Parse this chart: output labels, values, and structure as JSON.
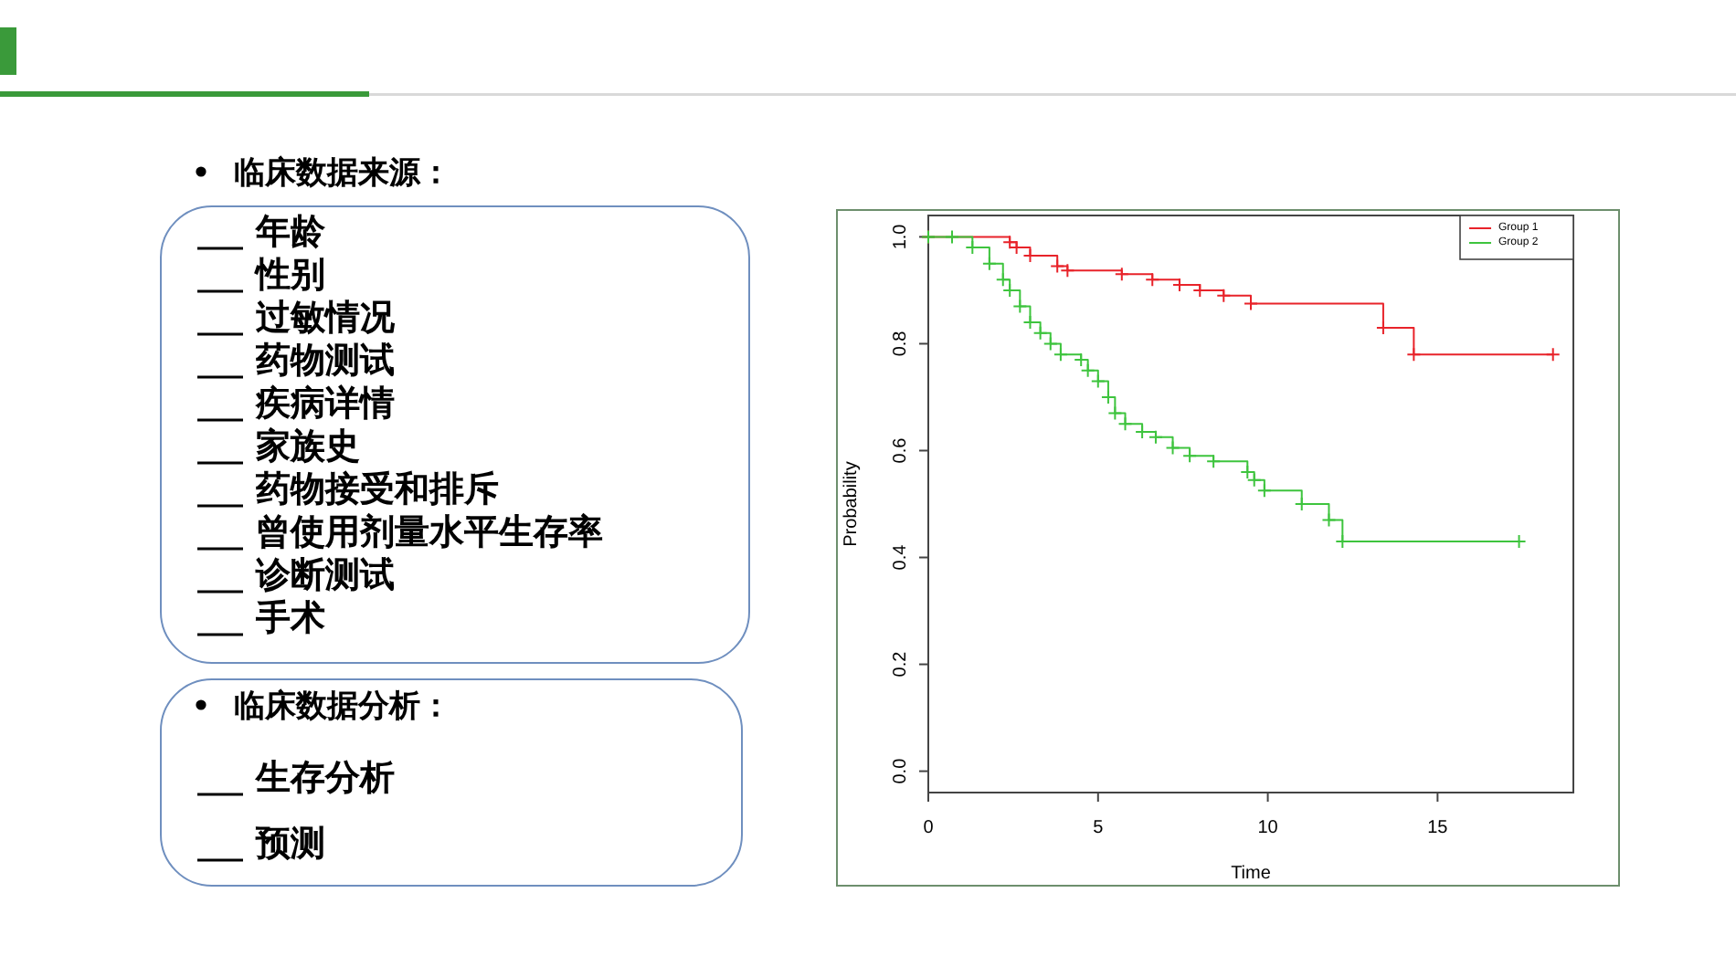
{
  "chart_data": [
    {
      "type": "other",
      "title": "临床数据来源：",
      "annotations": [
        "年龄",
        "性别",
        "过敏情况",
        "药物测试",
        "疾病详情",
        "家族史",
        "药物接受和排斥",
        "曾使用剂量水平生存率",
        "诊断测试",
        "手术"
      ]
    },
    {
      "type": "other",
      "title": "临床数据分析：",
      "annotations": [
        "生存分析",
        "预测"
      ]
    },
    {
      "type": "step",
      "xlabel": "Time",
      "ylabel": "Probability",
      "xlim": [
        0,
        19
      ],
      "ylim": [
        -0.04,
        1.04
      ],
      "xticks": [
        0,
        5,
        10,
        15
      ],
      "yticks": [
        {
          "value": 0,
          "label": "0.0"
        },
        {
          "value": 0.2,
          "label": "0.2"
        },
        {
          "value": 0.4,
          "label": "0.4"
        },
        {
          "value": 0.6,
          "label": "0.6"
        },
        {
          "value": 0.8,
          "label": "0.8"
        },
        {
          "value": 1,
          "label": "1.0"
        }
      ],
      "legend": "top right",
      "marker": "cross",
      "grid": false,
      "series": [
        {
          "name": "Group 1",
          "color": "#e8232a",
          "x": [
            0,
            2.4,
            2.6,
            3.0,
            3.8,
            4.1,
            5.7,
            6.6,
            7.4,
            8.0,
            8.7,
            9.5,
            13.4,
            14.3,
            18.4
          ],
          "values": [
            1.0,
            0.99,
            0.98,
            0.965,
            0.945,
            0.937,
            0.93,
            0.92,
            0.91,
            0.9,
            0.89,
            0.875,
            0.83,
            0.78,
            0.78
          ]
        },
        {
          "name": "Group 2",
          "color": "#3ec43e",
          "x": [
            0,
            0.7,
            1.3,
            1.8,
            2.2,
            2.4,
            2.7,
            3.0,
            3.3,
            3.6,
            3.9,
            4.5,
            4.7,
            5.0,
            5.3,
            5.5,
            5.8,
            6.3,
            6.7,
            7.2,
            7.7,
            8.4,
            9.4,
            9.6,
            9.9,
            11.0,
            11.8,
            12.2,
            17.4
          ],
          "values": [
            1.0,
            1.0,
            0.98,
            0.95,
            0.92,
            0.9,
            0.87,
            0.84,
            0.82,
            0.8,
            0.78,
            0.77,
            0.75,
            0.73,
            0.7,
            0.67,
            0.65,
            0.635,
            0.625,
            0.605,
            0.59,
            0.58,
            0.56,
            0.545,
            0.525,
            0.5,
            0.47,
            0.43,
            0.43
          ]
        }
      ]
    }
  ]
}
